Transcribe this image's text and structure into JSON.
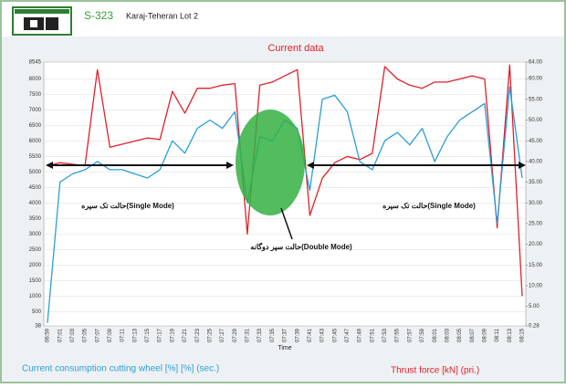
{
  "header": {
    "code": "S-323",
    "project": "Karaj-Teheran Lot 2"
  },
  "chart_data": {
    "type": "line",
    "title": "Current data",
    "xlabel": "Time",
    "categories": [
      "06:59",
      "07:01",
      "07:03",
      "07:05",
      "07:07",
      "07:09",
      "07:11",
      "07:13",
      "07:15",
      "07:17",
      "07:19",
      "07:21",
      "07:23",
      "07:25",
      "07:27",
      "07:29",
      "07:31",
      "07:33",
      "07:35",
      "07:37",
      "07:39",
      "07:41",
      "07:43",
      "07:45",
      "07:47",
      "07:49",
      "07:51",
      "07:53",
      "07:55",
      "07:57",
      "07:59",
      "08:01",
      "08:03",
      "08:05",
      "08:07",
      "08:09",
      "08:11",
      "08:13",
      "08:15"
    ],
    "series": [
      {
        "name": "Thrust force  [kN]  (pri.)",
        "color": "#e0202a",
        "values": [
          5200,
          5300,
          5250,
          5200,
          8300,
          5800,
          5900,
          6000,
          6100,
          6050,
          7600,
          6900,
          7700,
          7700,
          7800,
          7850,
          3000,
          7800,
          7900,
          8100,
          8300,
          3600,
          4800,
          5300,
          5500,
          5400,
          5600,
          8400,
          8000,
          7800,
          7700,
          7900,
          7900,
          8000,
          8100,
          8000,
          3200,
          8450,
          1000
        ]
      },
      {
        "name": "Current consumption cutting wheel [%]  [%]  (sec.)",
        "color": "#2a9fd6",
        "axis": "y2",
        "values": [
          1,
          35,
          37,
          38,
          40,
          38,
          38,
          37,
          36,
          38,
          45,
          42,
          48,
          50,
          48,
          52,
          30,
          46,
          45,
          50,
          48,
          33,
          55,
          56,
          52,
          40,
          38,
          45,
          47,
          44,
          48,
          40,
          46,
          50,
          52,
          54,
          25,
          58,
          36
        ]
      }
    ],
    "ylim": [
      38,
      8545
    ],
    "yticks": [
      38,
      500,
      1000,
      1500,
      2000,
      2500,
      3000,
      3500,
      4000,
      4500,
      5000,
      5500,
      6000,
      6500,
      7000,
      7500,
      8000,
      8545
    ],
    "y2lim": [
      0.28,
      64
    ],
    "y2ticks": [
      0.28,
      {
        "value": 5,
        "label": "5.00"
      },
      {
        "value": 10,
        "label": "10.00"
      },
      {
        "value": 15,
        "label": "15.00"
      },
      {
        "value": 20,
        "label": "20.00"
      },
      {
        "value": 25,
        "label": "25.00"
      },
      {
        "value": 30,
        "label": "30.00"
      },
      {
        "value": 35,
        "label": "35.00"
      },
      {
        "value": 40,
        "label": "40.00"
      },
      {
        "value": 45,
        "label": "45.00"
      },
      {
        "value": 50,
        "label": "50.00"
      },
      {
        "value": 55,
        "label": "55.00"
      },
      {
        "value": 60,
        "label": "60.00"
      },
      {
        "value": 64,
        "label": "64.00"
      }
    ],
    "grid": true,
    "annotations": [
      "حالت تک سپره(Single Mode)",
      "حالت تک سپره(Single Mode)",
      "حالت سپر دوگانه(Double Mode)"
    ]
  }
}
